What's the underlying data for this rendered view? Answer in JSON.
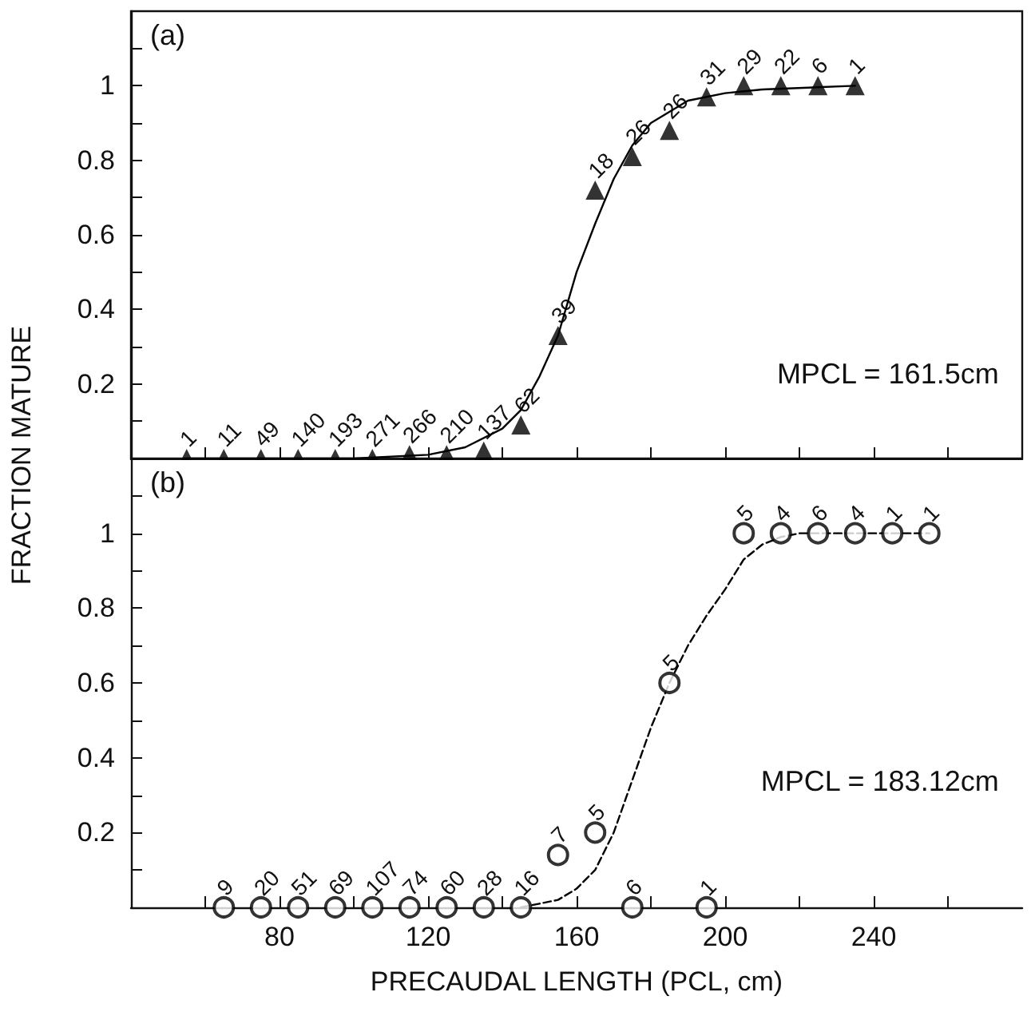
{
  "chart_data": [
    {
      "type": "scatter",
      "title": "(a)",
      "ylabel": "FRACTION MATURE",
      "tick_labels": "y",
      "grid": false,
      "annotations": [
        "MPCL = 161.5cm",
        {
          "text": "1",
          "x": 55,
          "y": 0
        },
        {
          "text": "11",
          "x": 65,
          "y": 0
        },
        {
          "text": "49",
          "x": 75,
          "y": 0
        },
        {
          "text": "140",
          "x": 85,
          "y": 0
        },
        {
          "text": "193",
          "x": 95,
          "y": 0
        },
        {
          "text": "271",
          "x": 105,
          "y": 0
        },
        {
          "text": "266",
          "x": 115,
          "y": 0.01
        },
        {
          "text": "210",
          "x": 125,
          "y": 0.01
        },
        {
          "text": "137",
          "x": 135,
          "y": 0.02
        },
        {
          "text": "62",
          "x": 145,
          "y": 0.09
        },
        {
          "text": "39",
          "x": 155,
          "y": 0.33
        },
        {
          "text": "18",
          "x": 165,
          "y": 0.72
        },
        {
          "text": "26",
          "x": 175,
          "y": 0.81
        },
        {
          "text": "26",
          "x": 185,
          "y": 0.88
        },
        {
          "text": "31",
          "x": 195,
          "y": 0.97
        },
        {
          "text": "29",
          "x": 205,
          "y": 1
        },
        {
          "text": "22",
          "x": 215,
          "y": 1
        },
        {
          "text": "6",
          "x": 225,
          "y": 1
        },
        {
          "text": "1",
          "x": 235,
          "y": 1
        }
      ],
      "xlim": [
        40,
        280
      ],
      "xticks": [
        {
          "value": 60,
          "label": null
        },
        {
          "value": 80,
          "label": null
        },
        {
          "value": 100,
          "label": null
        },
        {
          "value": 120,
          "label": null
        },
        {
          "value": 140,
          "label": null
        },
        {
          "value": 160,
          "label": null
        },
        {
          "value": 180,
          "label": null
        },
        {
          "value": 200,
          "label": null
        },
        {
          "value": 220,
          "label": null
        },
        {
          "value": 240,
          "label": null
        },
        {
          "value": 260,
          "label": null
        }
      ],
      "ylim": [
        0,
        1.2
      ],
      "yticks": [
        {
          "value": 0.1,
          "label": null
        },
        0.2,
        {
          "value": 0.3,
          "label": null
        },
        0.4,
        {
          "value": 0.5,
          "label": null
        },
        0.6,
        {
          "value": 0.7,
          "label": null
        },
        0.8,
        {
          "value": 0.9,
          "label": null
        },
        1,
        {
          "value": 1.1,
          "label": null
        }
      ],
      "series": [
        {
          "type": "line",
          "color": "#000000",
          "marker": "none",
          "line_style": "solid",
          "x": [
            55,
            100,
            120,
            130,
            140,
            145,
            150,
            155,
            160,
            165,
            170,
            175,
            180,
            190,
            200,
            210,
            235
          ],
          "values": [
            0,
            0,
            0.01,
            0.03,
            0.08,
            0.13,
            0.22,
            0.33,
            0.5,
            0.63,
            0.75,
            0.84,
            0.9,
            0.96,
            0.98,
            0.99,
            1
          ]
        },
        {
          "color": "#000000",
          "marker": "triangle",
          "x": [
            55,
            65,
            75,
            85,
            95,
            105,
            115,
            125,
            135,
            145,
            155,
            165,
            175,
            185,
            195,
            205,
            215,
            225,
            235
          ],
          "values": [
            0,
            0,
            0,
            0,
            0,
            0,
            0.01,
            0.01,
            0.02,
            0.09,
            0.33,
            0.72,
            0.81,
            0.88,
            0.97,
            1,
            1,
            1,
            1
          ]
        }
      ]
    },
    {
      "type": "scatter",
      "title": "(b)",
      "xlabel": "PRECAUDAL LENGTH (PCL, cm)",
      "grid": false,
      "annotations": [
        "MPCL = 183.12cm",
        {
          "text": "9",
          "x": 65,
          "y": 0
        },
        {
          "text": "20",
          "x": 75,
          "y": 0
        },
        {
          "text": "51",
          "x": 85,
          "y": 0
        },
        {
          "text": "69",
          "x": 95,
          "y": 0
        },
        {
          "text": "107",
          "x": 105,
          "y": 0
        },
        {
          "text": "74",
          "x": 115,
          "y": 0
        },
        {
          "text": "60",
          "x": 125,
          "y": 0
        },
        {
          "text": "28",
          "x": 135,
          "y": 0
        },
        {
          "text": "16",
          "x": 145,
          "y": 0
        },
        {
          "text": "7",
          "x": 155,
          "y": 0.14
        },
        {
          "text": "5",
          "x": 165,
          "y": 0.2
        },
        {
          "text": "6",
          "x": 175,
          "y": 0
        },
        {
          "text": "5",
          "x": 185,
          "y": 0.6
        },
        {
          "text": "1",
          "x": 195,
          "y": 0
        },
        {
          "text": "5",
          "x": 205,
          "y": 1
        },
        {
          "text": "4",
          "x": 215,
          "y": 1
        },
        {
          "text": "6",
          "x": 225,
          "y": 1
        },
        {
          "text": "4",
          "x": 235,
          "y": 1
        },
        {
          "text": "1",
          "x": 245,
          "y": 1
        },
        {
          "text": "1",
          "x": 255,
          "y": 1
        }
      ],
      "xlim": [
        40,
        280
      ],
      "xticks": [
        {
          "value": 60,
          "label": null
        },
        80,
        {
          "value": 100,
          "label": null
        },
        120,
        {
          "value": 140,
          "label": null
        },
        160,
        {
          "value": 180,
          "label": null
        },
        200,
        {
          "value": 220,
          "label": null
        },
        240,
        {
          "value": 260,
          "label": null
        }
      ],
      "ylim": [
        0,
        1.2
      ],
      "yticks": [
        {
          "value": 0.1,
          "label": null
        },
        0.2,
        {
          "value": 0.3,
          "label": null
        },
        0.4,
        {
          "value": 0.5,
          "label": null
        },
        0.6,
        {
          "value": 0.7,
          "label": null
        },
        0.8,
        {
          "value": 0.9,
          "label": null
        },
        1,
        {
          "value": 1.1,
          "label": null
        }
      ],
      "series": [
        {
          "type": "line",
          "color": "#000000",
          "marker": "none",
          "line_style": "dashed",
          "x": [
            145,
            150,
            155,
            160,
            165,
            170,
            175,
            180,
            185,
            190,
            195,
            200,
            205,
            210,
            215,
            220,
            255
          ],
          "values": [
            0,
            0.01,
            0.02,
            0.05,
            0.1,
            0.2,
            0.34,
            0.48,
            0.6,
            0.7,
            0.78,
            0.85,
            0.93,
            0.97,
            0.99,
            1,
            1
          ]
        },
        {
          "color": "#000000",
          "marker": "circle",
          "x": [
            65,
            75,
            85,
            95,
            105,
            115,
            125,
            135,
            145,
            155,
            165,
            175,
            185,
            195,
            205,
            215,
            225,
            235,
            245,
            255
          ],
          "values": [
            0,
            0,
            0,
            0,
            0,
            0,
            0,
            0,
            0,
            0.14,
            0.2,
            0,
            0.6,
            0,
            1,
            1,
            1,
            1,
            1,
            1
          ]
        }
      ]
    }
  ]
}
